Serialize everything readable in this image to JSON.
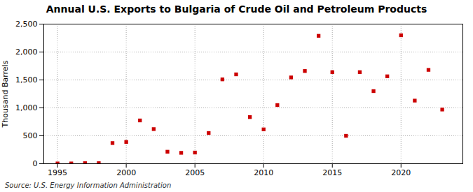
{
  "chart_data": {
    "type": "scatter",
    "title": "Annual U.S. Exports to Bulgaria of Crude Oil and Petroleum Products",
    "ylabel": "Thousand Barrels",
    "source": "Source: U.S. Energy Information Administration",
    "x": [
      1995,
      1996,
      1997,
      1998,
      1999,
      2000,
      2001,
      2002,
      2003,
      2004,
      2005,
      2006,
      2007,
      2008,
      2009,
      2010,
      2011,
      2012,
      2013,
      2014,
      2015,
      2016,
      2017,
      2018,
      2019,
      2020,
      2021,
      2022,
      2023
    ],
    "values": [
      5,
      5,
      10,
      10,
      370,
      390,
      775,
      620,
      215,
      195,
      200,
      550,
      1510,
      1600,
      835,
      615,
      1050,
      1545,
      1660,
      2290,
      1640,
      500,
      1640,
      1300,
      1565,
      2300,
      1130,
      1680,
      970
    ],
    "color": "#cc0000",
    "marker": "square",
    "xlim": [
      1994.0,
      2024.5
    ],
    "xticks": [
      1995,
      2000,
      2005,
      2010,
      2015,
      2020
    ],
    "ylim": [
      0,
      2500
    ],
    "yticks": [
      0,
      500,
      {
        "value": 1000,
        "label": "1,000"
      },
      {
        "value": 1500,
        "label": "1,500"
      },
      {
        "value": 2000,
        "label": "2,000"
      },
      {
        "value": 2500,
        "label": "2,500"
      }
    ],
    "grid": true
  }
}
